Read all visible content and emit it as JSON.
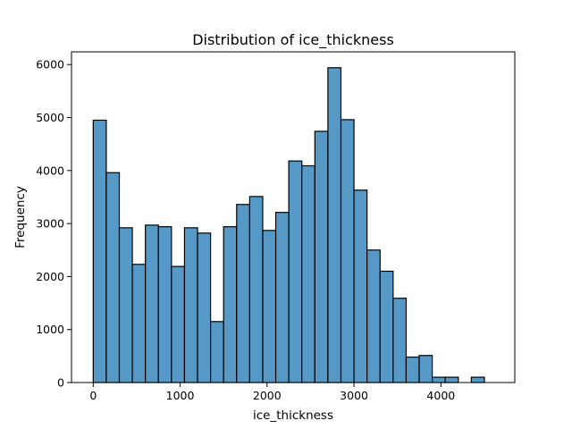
{
  "chart_data": {
    "type": "bar",
    "title": "Distribution of ice_thickness",
    "xlabel": "ice_thickness",
    "ylabel": "Frequency",
    "bin_width": 150,
    "bin_edges_start": 0,
    "values": [
      4950,
      3960,
      2920,
      2230,
      2970,
      2940,
      2190,
      2920,
      2820,
      1150,
      2940,
      3360,
      3510,
      2870,
      3210,
      4180,
      4090,
      4740,
      5940,
      4960,
      3630,
      2500,
      2100,
      1590,
      480,
      510,
      100,
      100,
      0,
      100
    ],
    "xlim": [
      -250,
      4850
    ],
    "ylim": [
      0,
      6240
    ],
    "xticks": [
      0,
      1000,
      2000,
      3000,
      4000
    ],
    "yticks": [
      0,
      1000,
      2000,
      3000,
      4000,
      5000,
      6000
    ],
    "bar_color": "#5799c6",
    "grid": false,
    "legend": "none"
  }
}
